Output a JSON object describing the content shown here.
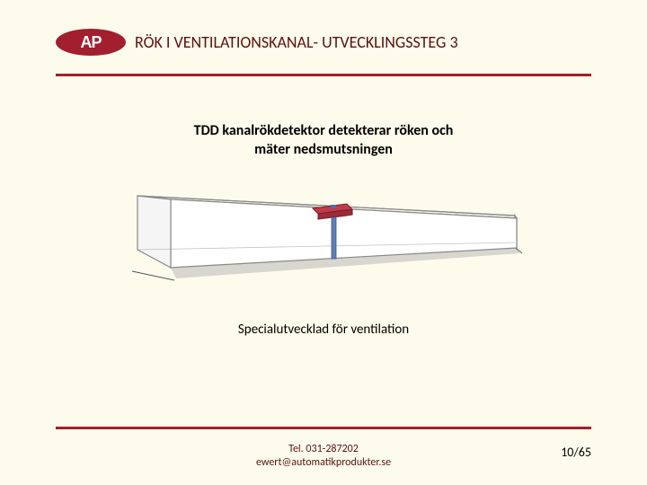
{
  "header": {
    "logo_text": "AP",
    "title": "RÖK I VENTILATIONSKANAL- UTVECKLINGSSTEG 3"
  },
  "subtitle_line1": "TDD kanalrökdetektor detekterar röken och",
  "subtitle_line2": "mäter nedsmutsningen",
  "caption": "Specialutvecklad för ventilation",
  "footer": {
    "tel": "Tel. 031-287202",
    "email": "ewert@automatikprodukter.se",
    "page": "10/65"
  },
  "diagram": {
    "type": "3d-duct-illustration",
    "background": "#fdfbeb",
    "duct_stroke": "#888888",
    "duct_fill_top": "#f8f6e5",
    "duct_fill_front": "#ffffff",
    "shadow_color": "#b8b8b8",
    "base_line_color": "#555555",
    "device_body_color": "#c23a4a",
    "device_shadow_color": "#8a8a8a",
    "probe_color": "#5b7fb8",
    "outline_w": 1.2
  },
  "colors": {
    "accent": "#a11f2e",
    "title_text": "#5a1111",
    "page_bg": "#fdfbeb"
  }
}
